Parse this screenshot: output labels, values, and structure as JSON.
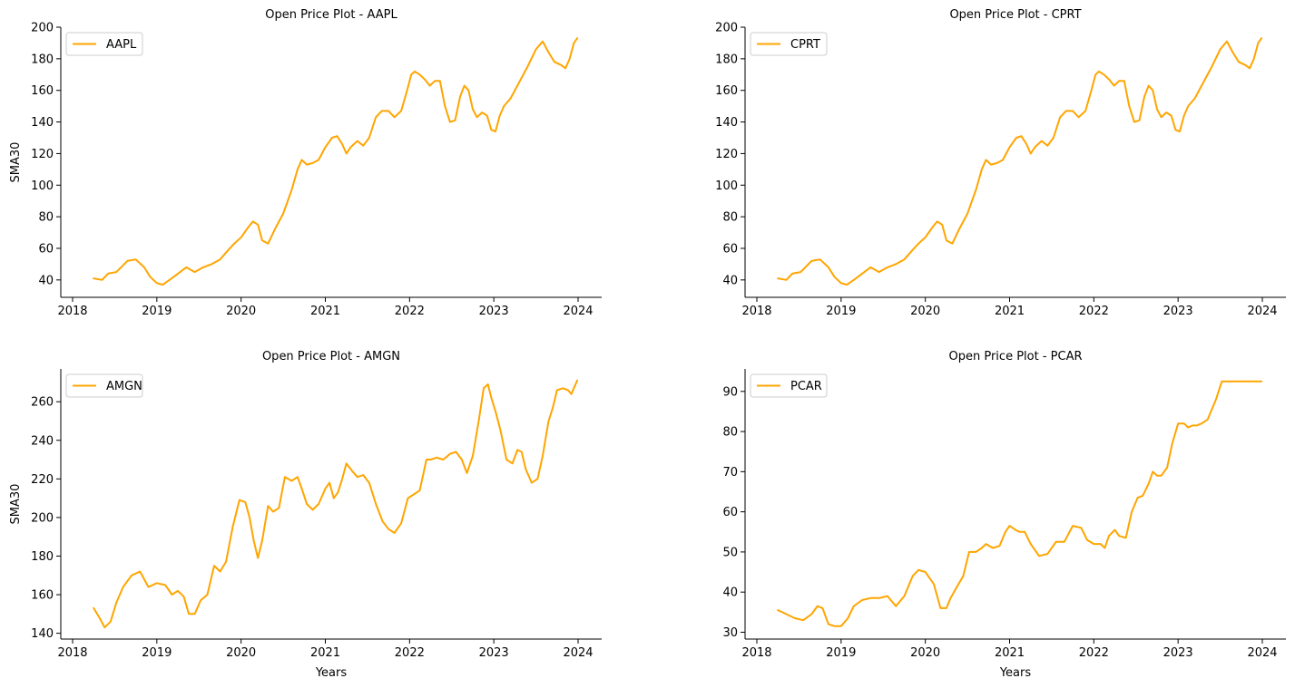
{
  "figure": {
    "line_color": "#FFA500"
  },
  "chart_data": [
    {
      "type": "line",
      "title": "Open Price Plot - AAPL",
      "xlabel": "",
      "ylabel": "SMA30",
      "xlim": [
        2017.86,
        2024.28
      ],
      "ylim": [
        29,
        200
      ],
      "xticks": [
        "2018",
        "2019",
        "2020",
        "2021",
        "2022",
        "2023",
        "2024"
      ],
      "yticks": [
        40,
        60,
        80,
        100,
        120,
        140,
        160,
        180,
        200
      ],
      "grid": false,
      "legend": "top-left",
      "series": [
        {
          "name": "AAPL",
          "color": "#FFA500",
          "x": [
            2018.25,
            2018.35,
            2018.42,
            2018.52,
            2018.65,
            2018.75,
            2018.85,
            2018.92,
            2019.0,
            2019.07,
            2019.15,
            2019.25,
            2019.35,
            2019.45,
            2019.55,
            2019.65,
            2019.75,
            2019.85,
            2019.92,
            2020.0,
            2020.08,
            2020.14,
            2020.2,
            2020.25,
            2020.32,
            2020.4,
            2020.5,
            2020.6,
            2020.67,
            2020.72,
            2020.78,
            2020.85,
            2020.92,
            2021.0,
            2021.08,
            2021.14,
            2021.2,
            2021.25,
            2021.3,
            2021.38,
            2021.45,
            2021.52,
            2021.6,
            2021.67,
            2021.75,
            2021.82,
            2021.9,
            2021.97,
            2022.02,
            2022.06,
            2022.12,
            2022.18,
            2022.24,
            2022.3,
            2022.36,
            2022.42,
            2022.48,
            2022.54,
            2022.6,
            2022.65,
            2022.7,
            2022.75,
            2022.8,
            2022.86,
            2022.92,
            2022.97,
            2023.02,
            2023.07,
            2023.12,
            2023.2,
            2023.3,
            2023.4,
            2023.5,
            2023.58,
            2023.65,
            2023.72,
            2023.8,
            2023.85,
            2023.9,
            2023.95,
            2023.99
          ],
          "values": [
            41,
            40,
            44,
            45,
            52,
            53,
            48,
            42,
            38,
            37,
            40,
            44,
            48,
            45,
            48,
            50,
            53,
            59,
            63,
            67,
            73,
            77,
            75,
            65,
            63,
            72,
            82,
            97,
            110,
            116,
            113,
            114,
            116,
            124,
            130,
            131,
            126,
            120,
            124,
            128,
            125,
            130,
            143,
            147,
            147,
            143,
            147,
            160,
            170,
            172,
            170,
            167,
            163,
            166,
            166,
            150,
            140,
            141,
            156,
            163,
            160,
            148,
            143,
            146,
            144,
            135,
            134,
            144,
            150,
            155,
            165,
            175,
            186,
            191,
            184,
            178,
            176,
            174,
            180,
            190,
            193
          ]
        }
      ]
    },
    {
      "type": "line",
      "title": "Open Price Plot - CPRT",
      "xlabel": "",
      "ylabel": "",
      "xlim": [
        2017.86,
        2024.28
      ],
      "ylim": [
        29,
        200
      ],
      "xticks": [
        "2018",
        "2019",
        "2020",
        "2021",
        "2022",
        "2023",
        "2024"
      ],
      "yticks": [
        40,
        60,
        80,
        100,
        120,
        140,
        160,
        180,
        200
      ],
      "grid": false,
      "legend": "top-left",
      "series": [
        {
          "name": "CPRT",
          "color": "#FFA500",
          "x": [
            2018.25,
            2018.35,
            2018.42,
            2018.52,
            2018.65,
            2018.75,
            2018.85,
            2018.92,
            2019.0,
            2019.07,
            2019.15,
            2019.25,
            2019.35,
            2019.45,
            2019.55,
            2019.65,
            2019.75,
            2019.85,
            2019.92,
            2020.0,
            2020.08,
            2020.14,
            2020.2,
            2020.25,
            2020.32,
            2020.4,
            2020.5,
            2020.6,
            2020.67,
            2020.72,
            2020.78,
            2020.85,
            2020.92,
            2021.0,
            2021.08,
            2021.14,
            2021.2,
            2021.25,
            2021.3,
            2021.38,
            2021.45,
            2021.52,
            2021.6,
            2021.67,
            2021.75,
            2021.82,
            2021.9,
            2021.97,
            2022.02,
            2022.06,
            2022.12,
            2022.18,
            2022.24,
            2022.3,
            2022.36,
            2022.42,
            2022.48,
            2022.54,
            2022.6,
            2022.65,
            2022.7,
            2022.75,
            2022.8,
            2022.86,
            2022.92,
            2022.97,
            2023.02,
            2023.07,
            2023.12,
            2023.2,
            2023.3,
            2023.4,
            2023.5,
            2023.58,
            2023.65,
            2023.72,
            2023.8,
            2023.85,
            2023.9,
            2023.95,
            2023.99
          ],
          "values": [
            41,
            40,
            44,
            45,
            52,
            53,
            48,
            42,
            38,
            37,
            40,
            44,
            48,
            45,
            48,
            50,
            53,
            59,
            63,
            67,
            73,
            77,
            75,
            65,
            63,
            72,
            82,
            97,
            110,
            116,
            113,
            114,
            116,
            124,
            130,
            131,
            126,
            120,
            124,
            128,
            125,
            130,
            143,
            147,
            147,
            143,
            147,
            160,
            170,
            172,
            170,
            167,
            163,
            166,
            166,
            150,
            140,
            141,
            156,
            163,
            160,
            148,
            143,
            146,
            144,
            135,
            134,
            144,
            150,
            155,
            165,
            175,
            186,
            191,
            184,
            178,
            176,
            174,
            180,
            190,
            193
          ]
        }
      ]
    },
    {
      "type": "line",
      "title": "Open Price Plot - AMGN",
      "xlabel": "Years",
      "ylabel": "SMA30",
      "xlim": [
        2017.86,
        2024.28
      ],
      "ylim": [
        137,
        277
      ],
      "xticks": [
        "2018",
        "2019",
        "2020",
        "2021",
        "2022",
        "2023",
        "2024"
      ],
      "yticks": [
        140,
        160,
        180,
        200,
        220,
        240,
        260
      ],
      "grid": false,
      "legend": "top-left",
      "series": [
        {
          "name": "AMGN",
          "color": "#FFA500",
          "x": [
            2018.25,
            2018.32,
            2018.38,
            2018.45,
            2018.52,
            2018.6,
            2018.7,
            2018.8,
            2018.9,
            2019.0,
            2019.1,
            2019.18,
            2019.25,
            2019.32,
            2019.38,
            2019.45,
            2019.52,
            2019.6,
            2019.68,
            2019.75,
            2019.82,
            2019.9,
            2019.98,
            2020.05,
            2020.1,
            2020.15,
            2020.2,
            2020.25,
            2020.32,
            2020.38,
            2020.45,
            2020.52,
            2020.6,
            2020.67,
            2020.72,
            2020.78,
            2020.85,
            2020.92,
            2021.0,
            2021.05,
            2021.1,
            2021.15,
            2021.2,
            2021.25,
            2021.32,
            2021.38,
            2021.45,
            2021.52,
            2021.6,
            2021.68,
            2021.75,
            2021.82,
            2021.9,
            2021.98,
            2022.05,
            2022.12,
            2022.2,
            2022.25,
            2022.32,
            2022.4,
            2022.48,
            2022.55,
            2022.62,
            2022.68,
            2022.75,
            2022.82,
            2022.88,
            2022.93,
            2022.97,
            2023.02,
            2023.08,
            2023.15,
            2023.22,
            2023.28,
            2023.33,
            2023.38,
            2023.45,
            2023.52,
            2023.58,
            2023.65,
            2023.7,
            2023.75,
            2023.82,
            2023.88,
            2023.92,
            2023.97,
            2023.99
          ],
          "values": [
            153,
            148,
            143,
            146,
            156,
            164,
            170,
            172,
            164,
            166,
            165,
            160,
            162,
            159,
            150,
            150,
            157,
            160,
            175,
            172,
            177,
            195,
            209,
            208,
            200,
            188,
            179,
            188,
            206,
            203,
            205,
            221,
            219,
            221,
            215,
            207,
            204,
            207,
            215,
            218,
            210,
            213,
            220,
            228,
            224,
            221,
            222,
            218,
            207,
            198,
            194,
            192,
            197,
            210,
            212,
            214,
            230,
            230,
            231,
            230,
            233,
            234,
            230,
            223,
            232,
            250,
            267,
            269,
            262,
            255,
            245,
            230,
            228,
            235,
            234,
            225,
            218,
            220,
            232,
            250,
            257,
            266,
            267,
            266,
            264,
            269,
            271
          ]
        }
      ]
    },
    {
      "type": "line",
      "title": "Open Price Plot - PCAR",
      "xlabel": "Years",
      "ylabel": "",
      "xlim": [
        2017.86,
        2024.28
      ],
      "ylim": [
        28.3,
        95.6
      ],
      "xticks": [
        "2018",
        "2019",
        "2020",
        "2021",
        "2022",
        "2023",
        "2024"
      ],
      "yticks": [
        30,
        40,
        50,
        60,
        70,
        80,
        90
      ],
      "grid": false,
      "legend": "top-left",
      "series": [
        {
          "name": "PCAR",
          "color": "#FFA500",
          "x": [
            2018.25,
            2018.35,
            2018.45,
            2018.55,
            2018.65,
            2018.72,
            2018.78,
            2018.85,
            2018.92,
            2019.0,
            2019.08,
            2019.15,
            2019.25,
            2019.35,
            2019.45,
            2019.55,
            2019.65,
            2019.75,
            2019.85,
            2019.92,
            2020.0,
            2020.1,
            2020.18,
            2020.25,
            2020.3,
            2020.38,
            2020.45,
            2020.52,
            2020.6,
            2020.67,
            2020.72,
            2020.8,
            2020.88,
            2020.95,
            2021.0,
            2021.07,
            2021.12,
            2021.18,
            2021.25,
            2021.35,
            2021.45,
            2021.55,
            2021.65,
            2021.75,
            2021.85,
            2021.92,
            2022.0,
            2022.08,
            2022.13,
            2022.18,
            2022.25,
            2022.3,
            2022.38,
            2022.45,
            2022.52,
            2022.58,
            2022.65,
            2022.7,
            2022.75,
            2022.8,
            2022.87,
            2022.93,
            2023.0,
            2023.07,
            2023.12,
            2023.17,
            2023.22,
            2023.28,
            2023.35,
            2023.45,
            2023.52,
            2023.58,
            2023.63,
            2023.67,
            2023.72,
            2023.78,
            2023.85,
            2023.9,
            2023.94,
            2023.99
          ],
          "values": [
            35.5,
            34.5,
            33.5,
            33,
            34.5,
            36.5,
            36,
            32,
            31.5,
            31.5,
            33.5,
            36.5,
            38,
            38.5,
            38.5,
            39,
            36.5,
            39,
            44,
            45.5,
            45,
            42,
            36,
            36,
            38.5,
            41.5,
            44,
            50,
            50,
            51,
            52,
            51,
            51.5,
            55,
            56.5,
            55.5,
            55,
            55,
            52,
            49,
            49.5,
            52.5,
            52.5,
            56.5,
            56,
            53,
            52,
            52,
            51,
            54,
            55.5,
            54,
            53.5,
            60,
            63.5,
            64,
            67,
            70,
            69,
            69,
            71,
            77,
            82,
            82,
            81,
            81.5,
            81.5,
            82,
            83,
            88,
            92.5,
            92.5,
            92.5,
            92.5,
            92.5,
            92.5,
            92.5,
            92.5,
            92.5,
            92.5
          ]
        }
      ]
    }
  ]
}
